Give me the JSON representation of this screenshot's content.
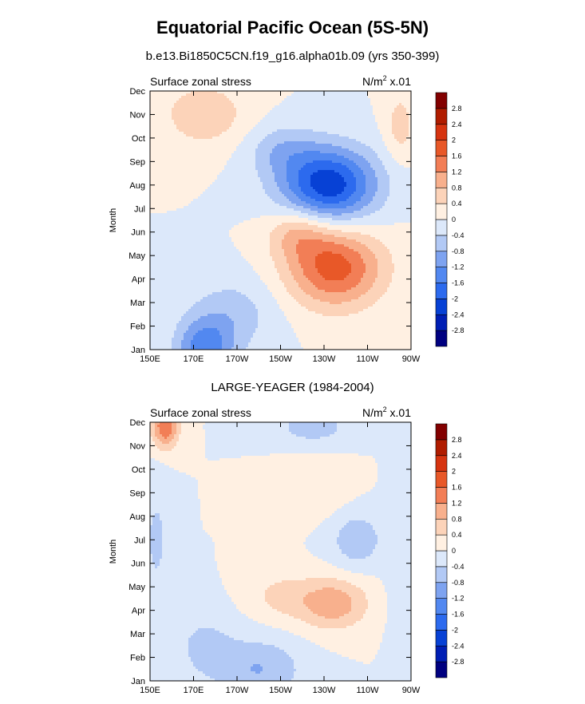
{
  "title": "Equatorial Pacific Ocean (5S-5N)",
  "subtitle": "b.e13.Bi1850C5CN.f19_g16.alpha01b.09 (yrs 350-399)",
  "panel2_title": "LARGE-YEAGER (1984-2004)",
  "chart_data": [
    {
      "type": "heatmap",
      "title": "Surface zonal stress",
      "units_label": "N/m",
      "units_sup": "2",
      "units_scale": "x.01",
      "ylabel": "Month",
      "xlabel": "",
      "x_ticks": [
        "150E",
        "170E",
        "170W",
        "150W",
        "130W",
        "110W",
        "90W"
      ],
      "x_tick_deg_east": [
        150,
        170,
        190,
        210,
        230,
        250,
        270
      ],
      "xlim_deg_east": [
        150,
        270
      ],
      "y_ticks": [
        "Jan",
        "Feb",
        "Mar",
        "Apr",
        "May",
        "Jun",
        "Jul",
        "Aug",
        "Sep",
        "Oct",
        "Nov",
        "Dec"
      ],
      "contour_levels": [
        -2.8,
        -2.4,
        -2,
        -1.6,
        -1.2,
        -0.8,
        -0.4,
        0,
        0.4,
        0.8,
        1.2,
        1.6,
        2,
        2.4,
        2.8
      ],
      "colorbar_labels": [
        "2.8",
        "2.4",
        "2",
        "1.6",
        "1.2",
        "0.8",
        "0.4",
        "0",
        "-0.4",
        "-0.8",
        "-1.2",
        "-1.6",
        "-2",
        "-2.4",
        "-2.8"
      ],
      "features": [
        {
          "lon": 175,
          "month": 1.0,
          "value": -1.4,
          "wlon": 13,
          "wmon": 1.3
        },
        {
          "lon": 188,
          "month": 2.5,
          "value": -0.6,
          "wlon": 20,
          "wmon": 1.6
        },
        {
          "lon": 235,
          "month": 4.5,
          "value": 1.8,
          "wlon": 22,
          "wmon": 1.7
        },
        {
          "lon": 218,
          "month": 6.0,
          "value": 0.8,
          "wlon": 14,
          "wmon": 1.1
        },
        {
          "lon": 232,
          "month": 8.0,
          "value": -2.3,
          "wlon": 22,
          "wmon": 1.6
        },
        {
          "lon": 210,
          "month": 9.5,
          "value": -0.6,
          "wlon": 16,
          "wmon": 1.1
        },
        {
          "lon": 175,
          "month": 11.0,
          "value": 0.7,
          "wlon": 20,
          "wmon": 1.4
        },
        {
          "lon": 265,
          "month": 10.5,
          "value": 0.6,
          "wlon": 7,
          "wmon": 1.5
        }
      ]
    },
    {
      "type": "heatmap",
      "title": "Surface zonal stress",
      "units_label": "N/m",
      "units_sup": "2",
      "units_scale": "x.01",
      "ylabel": "Month",
      "xlabel": "",
      "x_ticks": [
        "150E",
        "170E",
        "170W",
        "150W",
        "130W",
        "110W",
        "90W"
      ],
      "x_tick_deg_east": [
        150,
        170,
        190,
        210,
        230,
        250,
        270
      ],
      "xlim_deg_east": [
        150,
        270
      ],
      "y_ticks": [
        "Jan",
        "Feb",
        "Mar",
        "Apr",
        "May",
        "Jun",
        "Jul",
        "Aug",
        "Sep",
        "Oct",
        "Nov",
        "Dec"
      ],
      "contour_levels": [
        -2.8,
        -2.4,
        -2,
        -1.6,
        -1.2,
        -0.8,
        -0.4,
        0,
        0.4,
        0.8,
        1.2,
        1.6,
        2,
        2.4,
        2.8
      ],
      "colorbar_labels": [
        "2.8",
        "2.4",
        "2",
        "1.6",
        "1.2",
        "0.8",
        "0.4",
        "0",
        "-0.4",
        "-0.8",
        "-1.2",
        "-1.6",
        "-2",
        "-2.4",
        "-2.8"
      ],
      "features": [
        {
          "lon": 157,
          "month": 11.8,
          "value": 1.6,
          "wlon": 6,
          "wmon": 0.9
        },
        {
          "lon": 234,
          "month": 4.3,
          "value": 1.1,
          "wlon": 16,
          "wmon": 1.1
        },
        {
          "lon": 210,
          "month": 4.6,
          "value": 0.5,
          "wlon": 14,
          "wmon": 1.0
        },
        {
          "lon": 200,
          "month": 1.5,
          "value": -0.8,
          "wlon": 20,
          "wmon": 1.3
        },
        {
          "lon": 175,
          "month": 2.5,
          "value": -0.5,
          "wlon": 14,
          "wmon": 1.4
        },
        {
          "lon": 245,
          "month": 7.0,
          "value": -0.7,
          "wlon": 12,
          "wmon": 1.2
        },
        {
          "lon": 225,
          "month": 11.8,
          "value": -0.6,
          "wlon": 18,
          "wmon": 0.8
        },
        {
          "lon": 153,
          "month": 7.0,
          "value": -0.5,
          "wlon": 6,
          "wmon": 2.5
        },
        {
          "lon": 225,
          "month": 9.2,
          "value": 0.4,
          "wlon": 16,
          "wmon": 1.2
        },
        {
          "lon": 265,
          "month": 6.5,
          "value": -0.35,
          "wlon": 6,
          "wmon": 4.0
        }
      ]
    }
  ],
  "colors": {
    "level_fills": [
      "#000080",
      "#001eb4",
      "#0741d5",
      "#2c6aee",
      "#5288f0",
      "#7ea3f0",
      "#b2c9f5",
      "#dce8fa",
      "#fff0e2",
      "#fcd3b9",
      "#f8b08d",
      "#f27e56",
      "#e85828",
      "#d63410",
      "#b01c00",
      "#820000"
    ]
  }
}
